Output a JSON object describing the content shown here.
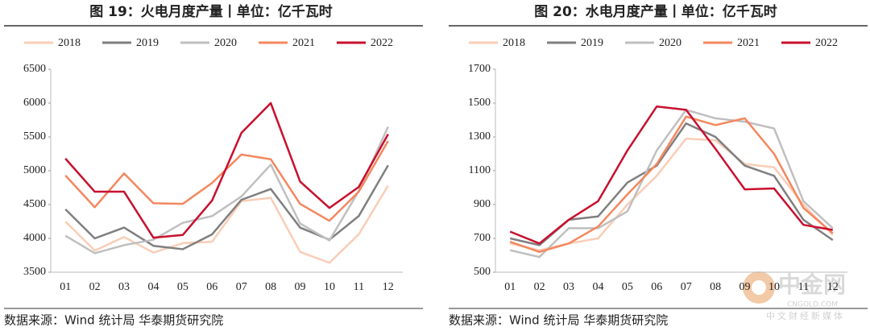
{
  "chart_data": [
    {
      "type": "line",
      "title": "图 19：火电月度产量丨单位：亿千瓦时",
      "source": "数据来源：Wind 统计局 华泰期货研究院",
      "categories": [
        "01",
        "02",
        "03",
        "04",
        "05",
        "06",
        "07",
        "08",
        "09",
        "10",
        "11",
        "12"
      ],
      "ylim": [
        3500,
        6500
      ],
      "yticks": [
        3500,
        4000,
        4500,
        5000,
        5500,
        6000,
        6500
      ],
      "series": [
        {
          "name": "2018",
          "color": "#f9cdb6",
          "values": [
            4250,
            3820,
            4020,
            3790,
            3930,
            3950,
            4550,
            4600,
            3800,
            3640,
            4060,
            4780
          ]
        },
        {
          "name": "2019",
          "color": "#7f7f7f",
          "values": [
            4430,
            4000,
            4160,
            3890,
            3840,
            4060,
            4570,
            4730,
            4160,
            3980,
            4330,
            5080
          ]
        },
        {
          "name": "2020",
          "color": "#bfbfbf",
          "values": [
            4040,
            3780,
            3900,
            3980,
            4230,
            4330,
            4620,
            5090,
            4220,
            3970,
            4700,
            5650
          ]
        },
        {
          "name": "2021",
          "color": "#f4875e",
          "values": [
            4930,
            4460,
            4960,
            4520,
            4510,
            4820,
            5240,
            5170,
            4510,
            4260,
            4690,
            5440
          ]
        },
        {
          "name": "2022",
          "color": "#c8102e",
          "values": [
            5180,
            4690,
            4690,
            4010,
            4050,
            4560,
            5560,
            6000,
            4840,
            4450,
            4760,
            5540
          ]
        }
      ]
    },
    {
      "type": "line",
      "title": "图 20：水电月度产量丨单位：亿千瓦时",
      "source": "数据来源：Wind 统计局 华泰期货研究院",
      "categories": [
        "01",
        "02",
        "03",
        "04",
        "05",
        "06",
        "07",
        "08",
        "09",
        "10",
        "11",
        "12"
      ],
      "ylim": [
        500,
        1700
      ],
      "yticks": [
        500,
        700,
        900,
        1100,
        1300,
        1500,
        1700
      ],
      "series": [
        {
          "name": "2018",
          "color": "#f9cdb6",
          "values": [
            670,
            630,
            670,
            700,
            900,
            1070,
            1290,
            1280,
            1140,
            1120,
            900,
            720
          ]
        },
        {
          "name": "2019",
          "color": "#7f7f7f",
          "values": [
            700,
            660,
            810,
            830,
            1030,
            1130,
            1380,
            1300,
            1130,
            1070,
            810,
            690
          ]
        },
        {
          "name": "2020",
          "color": "#bfbfbf",
          "values": [
            630,
            590,
            760,
            760,
            860,
            1220,
            1460,
            1410,
            1390,
            1350,
            920,
            760
          ]
        },
        {
          "name": "2021",
          "color": "#f4875e",
          "values": [
            680,
            620,
            670,
            770,
            960,
            1140,
            1420,
            1370,
            1410,
            1200,
            880,
            730
          ]
        },
        {
          "name": "2022",
          "color": "#c8102e",
          "values": [
            740,
            670,
            810,
            920,
            1220,
            1480,
            1460,
            1230,
            990,
            995,
            780,
            750
          ]
        }
      ]
    }
  ],
  "watermark": {
    "name": "中金网",
    "url": "CNGOLD.COM",
    "slogan": "中文财经新媒体"
  }
}
